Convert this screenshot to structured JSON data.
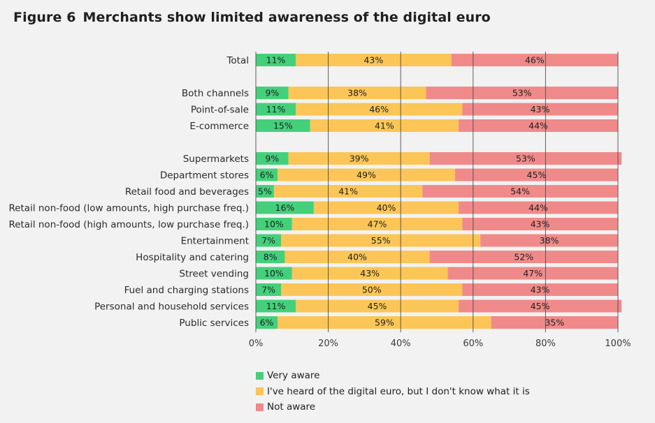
{
  "figure": {
    "number": "Figure 6",
    "title": "Merchants show limited awareness of the digital euro"
  },
  "colors": {
    "very_aware": "#44d07b",
    "heard": "#fbc657",
    "not_aware": "#f08a8a",
    "grid": "#444444",
    "background": "#f2f2f2"
  },
  "legend": {
    "very_aware": "Very aware",
    "heard": "I've heard of the digital euro, but I don't know what it is",
    "not_aware": "Not aware"
  },
  "chart_data": {
    "type": "bar",
    "orientation": "horizontal",
    "stacked": true,
    "xlim": [
      0,
      100
    ],
    "x_ticks": [
      "0%",
      "20%",
      "40%",
      "60%",
      "80%",
      "100%"
    ],
    "grid": true,
    "legend_position": "bottom",
    "groups": [
      [
        "Total"
      ],
      [
        "Both channels",
        "Point-of-sale",
        "E-commerce"
      ],
      [
        "Supermarkets",
        "Department stores",
        "Retail food and beverages",
        "Retail non-food (low amounts, high purchase freq.)",
        "Retail non-food (high amounts, low purchase freq.)",
        "Entertainment",
        "Hospitality and catering",
        "Street vending",
        "Fuel and charging stations",
        "Personal and household services",
        "Public services"
      ]
    ],
    "categories": [
      "Total",
      "Both channels",
      "Point-of-sale",
      "E-commerce",
      "Supermarkets",
      "Department stores",
      "Retail food and beverages",
      "Retail non-food (low amounts, high purchase freq.)",
      "Retail non-food (high amounts, low purchase freq.)",
      "Entertainment",
      "Hospitality and catering",
      "Street vending",
      "Fuel and charging stations",
      "Personal and household services",
      "Public services"
    ],
    "series": [
      {
        "name": "Very aware",
        "key": "very_aware",
        "values": [
          11,
          9,
          11,
          15,
          9,
          6,
          5,
          16,
          10,
          7,
          8,
          10,
          7,
          11,
          6
        ]
      },
      {
        "name": "I've heard of the digital euro, but I don't know what it is",
        "key": "heard",
        "values": [
          43,
          38,
          46,
          41,
          39,
          49,
          41,
          40,
          47,
          55,
          40,
          43,
          50,
          45,
          59
        ]
      },
      {
        "name": "Not aware",
        "key": "not_aware",
        "values": [
          46,
          53,
          43,
          44,
          53,
          45,
          54,
          44,
          43,
          38,
          52,
          47,
          43,
          45,
          35
        ]
      }
    ]
  }
}
